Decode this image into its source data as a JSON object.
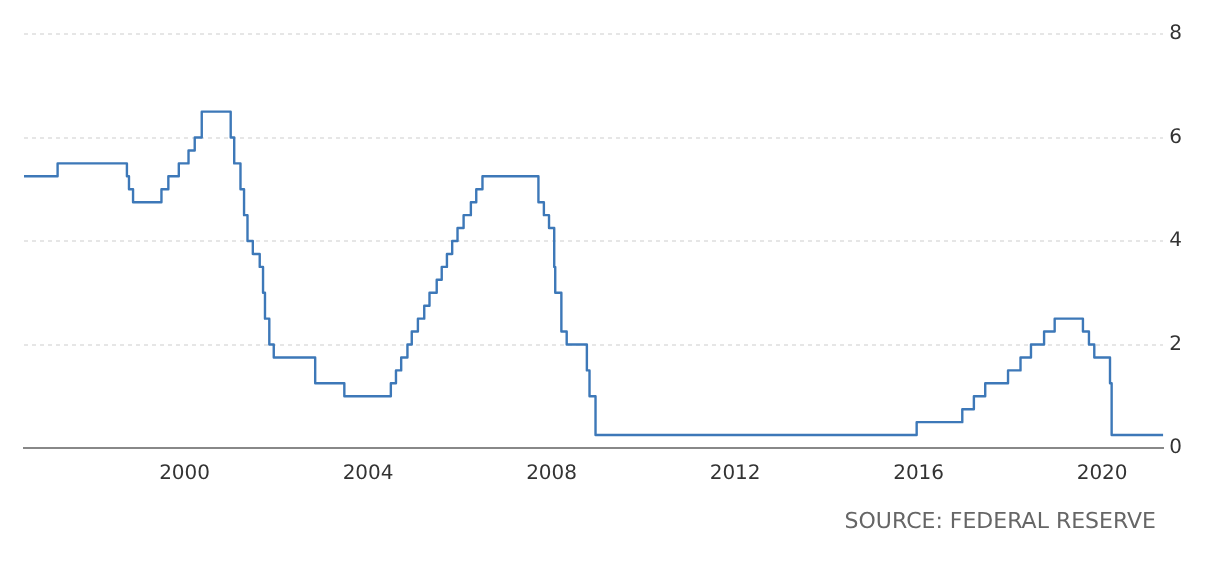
{
  "chart_data": {
    "type": "step",
    "x": [
      "1996-07",
      "1997-03-25",
      "1998-09-29",
      "1998-10-15",
      "1998-11-17",
      "1999-06-30",
      "1999-08-24",
      "1999-11-16",
      "2000-02-02",
      "2000-03-21",
      "2000-05-16",
      "2001-01-03",
      "2001-01-31",
      "2001-03-20",
      "2001-04-18",
      "2001-05-15",
      "2001-06-27",
      "2001-08-21",
      "2001-09-17",
      "2001-10-02",
      "2001-11-06",
      "2001-12-11",
      "2002-11-06",
      "2003-06-25",
      "2004-06-30",
      "2004-08-10",
      "2004-09-21",
      "2004-11-10",
      "2004-12-14",
      "2005-02-02",
      "2005-03-22",
      "2005-05-03",
      "2005-06-30",
      "2005-08-09",
      "2005-09-20",
      "2005-11-01",
      "2005-12-13",
      "2006-01-31",
      "2006-03-28",
      "2006-05-10",
      "2006-06-29",
      "2007-09-18",
      "2007-10-31",
      "2007-12-11",
      "2008-01-22",
      "2008-01-30",
      "2008-03-18",
      "2008-04-30",
      "2008-10-08",
      "2008-10-29",
      "2008-12-16",
      "2015-12-16",
      "2016-12-14",
      "2017-03-15",
      "2017-06-14",
      "2017-12-13",
      "2018-03-21",
      "2018-06-13",
      "2018-09-26",
      "2018-12-19",
      "2019-07-31",
      "2019-09-18",
      "2019-10-30",
      "2020-03-03",
      "2020-03-16",
      "2021-05"
    ],
    "series": [
      {
        "color": "#3d78b8",
        "values": [
          5.25,
          5.5,
          5.25,
          5.0,
          4.75,
          5.0,
          5.25,
          5.5,
          5.75,
          6.0,
          6.5,
          6.0,
          5.5,
          5.0,
          4.5,
          4.0,
          3.75,
          3.5,
          3.0,
          2.5,
          2.0,
          1.75,
          1.25,
          1.0,
          1.25,
          1.5,
          1.75,
          2.0,
          2.25,
          2.5,
          2.75,
          3.0,
          3.25,
          3.5,
          3.75,
          4.0,
          4.25,
          4.5,
          4.75,
          5.0,
          5.25,
          4.75,
          4.5,
          4.25,
          3.5,
          3.0,
          2.25,
          2.0,
          1.5,
          1.0,
          0.25,
          0.5,
          0.75,
          1.0,
          1.25,
          1.5,
          1.75,
          2.0,
          2.25,
          2.5,
          2.25,
          2.0,
          1.75,
          1.25,
          0.25,
          0.25
        ]
      }
    ],
    "xlim": [
      "1996-07",
      "2021-05"
    ],
    "xticks": [
      "2000",
      "2004",
      "2008",
      "2012",
      "2016",
      "2020"
    ],
    "ylim": [
      0,
      8
    ],
    "yticks": [
      0,
      2,
      4,
      6,
      8
    ],
    "grid": "y",
    "legend": false,
    "annotations": [
      "SOURCE: FEDERAL RESERVE"
    ]
  }
}
